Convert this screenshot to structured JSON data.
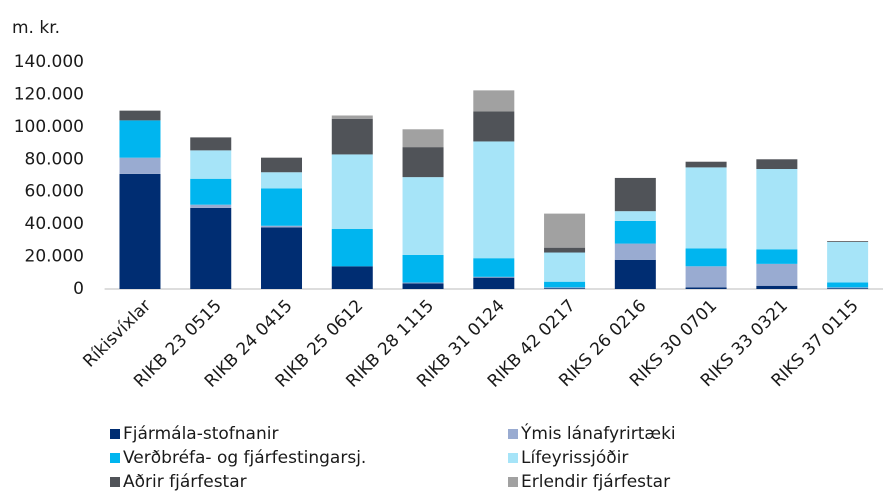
{
  "chart_data": {
    "type": "stacked_bar",
    "y_axis_label": "m. kr.",
    "categories": [
      "Ríkisvíxlar",
      "RIKB 23 0515",
      "RIKB 24 0415",
      "RIKB 25 0612",
      "RIKB 28 1115",
      "RIKB 31 0124",
      "RIKB 42 0217",
      "RIKS 26 0216",
      "RIKS 30 0701",
      "RIKS 33 0321",
      "RIKS 37 0115"
    ],
    "series": [
      {
        "name": "Fjármála-stofnanir",
        "color": "#002d72",
        "values": [
          71000,
          50000,
          38000,
          14000,
          3500,
          7000,
          500,
          18000,
          1000,
          2000,
          500
        ]
      },
      {
        "name": "Ýmis lánafyrirtæki",
        "color": "#99abd1",
        "values": [
          10000,
          2000,
          1000,
          0,
          500,
          500,
          500,
          10000,
          13000,
          13500,
          500
        ]
      },
      {
        "name": "Verðbréfa- og fjárfestingarsj.",
        "color": "#00b5ef",
        "values": [
          23000,
          16000,
          23000,
          23000,
          17000,
          11500,
          3500,
          14000,
          11000,
          9000,
          3000
        ]
      },
      {
        "name": "Lífeyrissjóðir",
        "color": "#a6e4f8",
        "values": [
          0,
          17500,
          10000,
          46000,
          48000,
          72000,
          18000,
          6000,
          50000,
          49500,
          25000
        ]
      },
      {
        "name": "Aðrir fjárfestar",
        "color": "#505358",
        "values": [
          6000,
          8000,
          9000,
          22000,
          18500,
          18500,
          3000,
          20500,
          3500,
          6000,
          500
        ]
      },
      {
        "name": "Erlendir fjárfestar",
        "color": "#a1a1a1",
        "values": [
          0,
          0,
          0,
          2000,
          11000,
          13000,
          21000,
          0,
          0,
          0,
          0
        ]
      }
    ],
    "ylim": [
      0,
      140000
    ],
    "yticks": [
      0,
      {
        "value": 20000,
        "label": "20.000"
      },
      {
        "value": 40000,
        "label": "40.000"
      },
      {
        "value": 60000,
        "label": "60.000"
      },
      {
        "value": 80000,
        "label": "80.000"
      },
      {
        "value": 100000,
        "label": "100.000"
      },
      {
        "value": 120000,
        "label": "120.000"
      },
      {
        "value": 140000,
        "label": "140.000"
      }
    ],
    "grid": false
  }
}
